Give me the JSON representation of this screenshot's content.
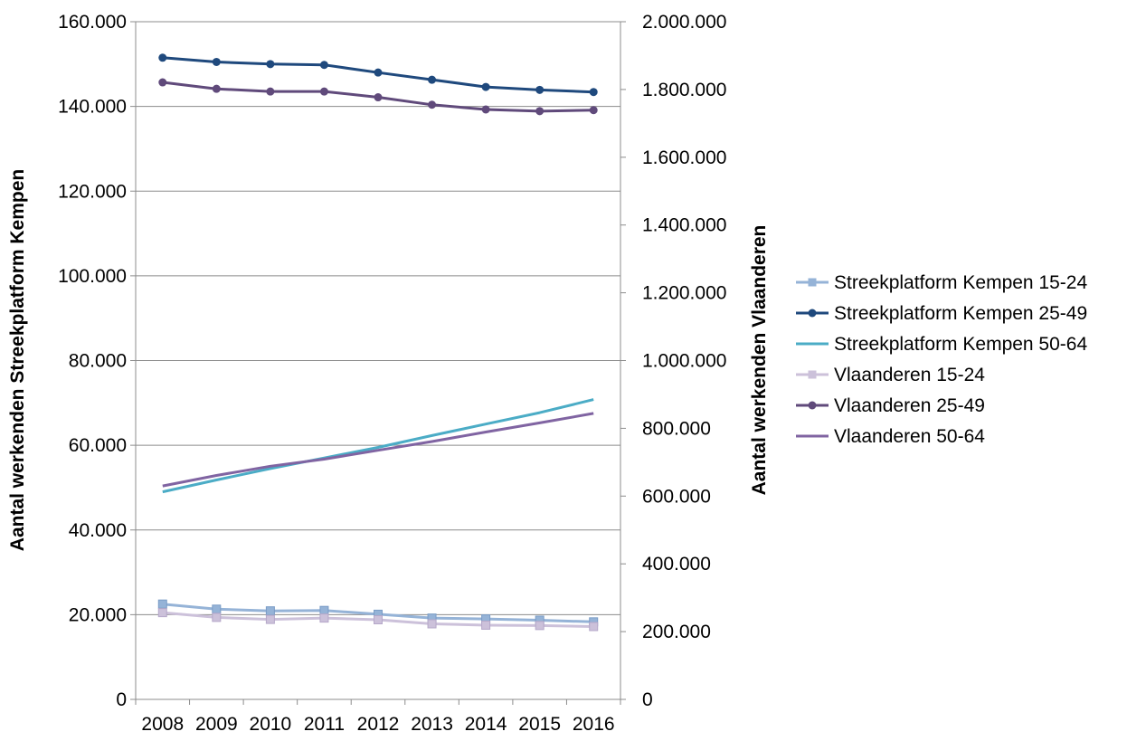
{
  "chart_data": {
    "type": "line",
    "title": "",
    "categories": [
      "2008",
      "2009",
      "2010",
      "2011",
      "2012",
      "2013",
      "2014",
      "2015",
      "2016"
    ],
    "y_left": {
      "label": "Aantal werkenden Streekplatform Kempen",
      "range": [
        0,
        160000
      ],
      "ticks": [
        "0",
        "20.000",
        "40.000",
        "60.000",
        "80.000",
        "100.000",
        "120.000",
        "140.000",
        "160.000"
      ]
    },
    "y_right": {
      "label": "Aantal werkenden Vlaanderen",
      "range": [
        0,
        2000000
      ],
      "ticks": [
        "0",
        "200.000",
        "400.000",
        "600.000",
        "800.000",
        "1.000.000",
        "1.200.000",
        "1.400.000",
        "1.600.000",
        "1.800.000",
        "2.000.000"
      ]
    },
    "grid": "horizontal",
    "legend_position": "right",
    "series": [
      {
        "name": "Streekplatform Kempen 15-24",
        "axis": "left",
        "color": "#95b3d7",
        "marker": "square",
        "values": [
          22500,
          21300,
          20900,
          21000,
          20100,
          19200,
          19000,
          18700,
          18300
        ]
      },
      {
        "name": "Streekplatform Kempen 25-49",
        "axis": "left",
        "color": "#1f497d",
        "marker": "circle",
        "values": [
          151500,
          150500,
          150000,
          149800,
          148000,
          146300,
          144600,
          143900,
          143400
        ]
      },
      {
        "name": "Streekplatform Kempen 50-64",
        "axis": "left",
        "color": "#4bacc6",
        "marker": "none",
        "values": [
          49000,
          51800,
          54500,
          57000,
          59500,
          62300,
          65000,
          67700,
          70800
        ]
      },
      {
        "name": "Vlaanderen 15-24",
        "axis": "right",
        "color": "#ccc1da",
        "marker": "square",
        "values": [
          256000,
          242000,
          236000,
          240000,
          235000,
          223000,
          219000,
          218000,
          215000
        ]
      },
      {
        "name": "Vlaanderen 25-49",
        "axis": "right",
        "color": "#604a7b",
        "marker": "circle",
        "values": [
          1821000,
          1802000,
          1794000,
          1794000,
          1777000,
          1755000,
          1741000,
          1736000,
          1739000
        ]
      },
      {
        "name": "Vlaanderen 50-64",
        "axis": "right",
        "color": "#8064a2",
        "marker": "none",
        "values": [
          630000,
          661000,
          688000,
          709000,
          735000,
          761000,
          789000,
          816000,
          844000
        ]
      }
    ]
  }
}
